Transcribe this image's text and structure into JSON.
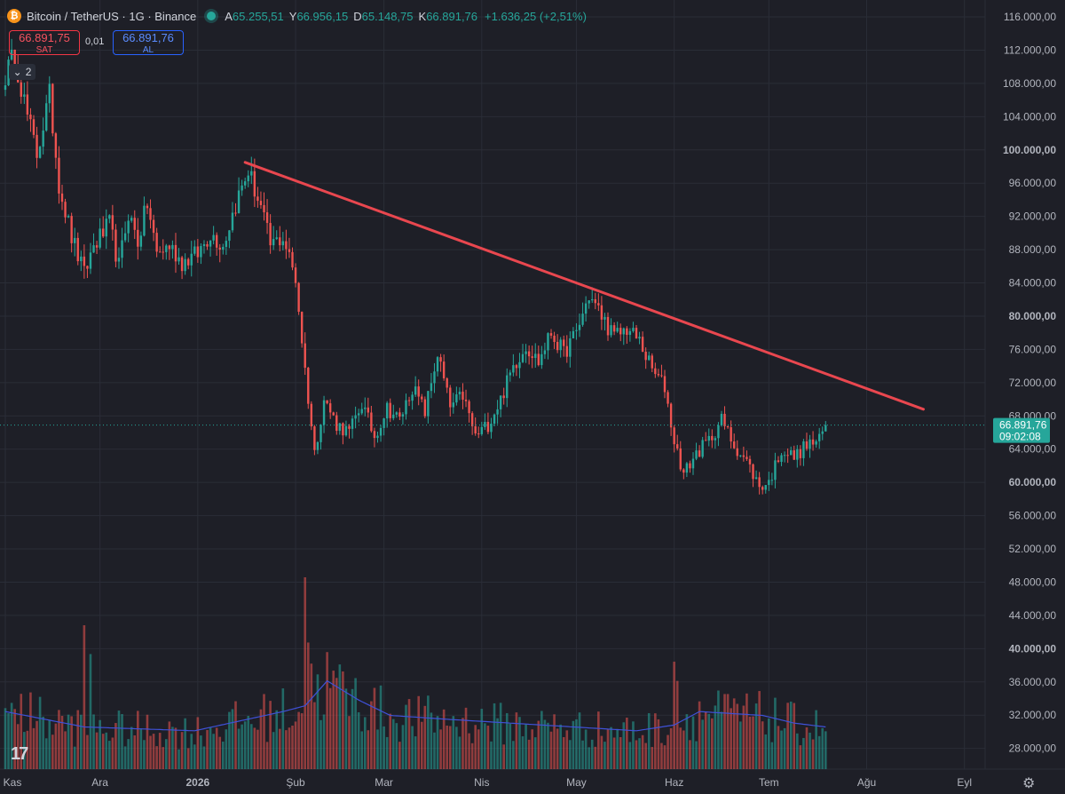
{
  "header": {
    "symbol_icon": "bitcoin-icon",
    "title": "Bitcoin / TetherUS · 1G · Binance",
    "open_label": "A",
    "open_value": "65.255,51",
    "high_label": "Y",
    "high_value": "66.956,15",
    "low_label": "D",
    "low_value": "65.148,75",
    "close_label": "K",
    "close_value": "66.891,76",
    "change": "+1.636,25 (+2,51%)"
  },
  "trade": {
    "sell_price": "66.891,75",
    "sell_label": "SAT",
    "spread": "0,01",
    "buy_price": "66.891,76",
    "buy_label": "AL",
    "indicator_count": "2"
  },
  "price_tag": {
    "price": "66.891,76",
    "countdown": "09:02:08"
  },
  "colors": {
    "bg": "#1e1f27",
    "up": "#26a69a",
    "down": "#ef5350",
    "trendline": "#e9474f",
    "volume_ma": "#3f51d8",
    "grid": "#2a2d37"
  },
  "chart_data": {
    "type": "candlestick",
    "title": "Bitcoin / TetherUS · 1G · Binance",
    "x_labels": [
      "Kas",
      "Ara",
      "2026",
      "Şub",
      "Mar",
      "Nis",
      "May",
      "Haz",
      "Tem",
      "Ağu",
      "Eyl"
    ],
    "x_label_day_index": [
      0,
      30,
      61,
      92,
      120,
      151,
      181,
      212,
      242,
      273,
      304
    ],
    "y_labels": [
      "116.000,00",
      "112.000,00",
      "108.000,00",
      "104.000,00",
      "100.000,00",
      "96.000,00",
      "92.000,00",
      "88.000,00",
      "84.000,00",
      "80.000,00",
      "76.000,00",
      "72.000,00",
      "68.000,00",
      "64.000,00",
      "60.000,00",
      "56.000,00",
      "52.000,00",
      "48.000,00",
      "44.000,00",
      "40.000,00",
      "36.000,00",
      "32.000,00",
      "28.000,00"
    ],
    "y_range": [
      26000,
      117000
    ],
    "last_price": 66891.76,
    "trendline": {
      "start": {
        "day": 76,
        "price": 98500
      },
      "end": {
        "day": 291,
        "price": 68800
      }
    },
    "anchors": [
      [
        0,
        109000
      ],
      [
        3,
        111500
      ],
      [
        7,
        104000
      ],
      [
        10,
        99500
      ],
      [
        14,
        106500
      ],
      [
        17,
        96000
      ],
      [
        21,
        89500
      ],
      [
        25,
        85000
      ],
      [
        28,
        88500
      ],
      [
        33,
        91000
      ],
      [
        36,
        86000
      ],
      [
        39,
        92500
      ],
      [
        42,
        89000
      ],
      [
        45,
        93500
      ],
      [
        48,
        87500
      ],
      [
        52,
        88500
      ],
      [
        56,
        86500
      ],
      [
        61,
        87500
      ],
      [
        65,
        90000
      ],
      [
        69,
        88500
      ],
      [
        73,
        93500
      ],
      [
        77,
        97500
      ],
      [
        81,
        93000
      ],
      [
        84,
        88500
      ],
      [
        88,
        89500
      ],
      [
        92,
        84500
      ],
      [
        95,
        73500
      ],
      [
        98,
        63500
      ],
      [
        101,
        70000
      ],
      [
        105,
        67000
      ],
      [
        109,
        66000
      ],
      [
        113,
        69500
      ],
      [
        117,
        65500
      ],
      [
        121,
        69000
      ],
      [
        125,
        67500
      ],
      [
        129,
        71500
      ],
      [
        133,
        68500
      ],
      [
        137,
        75500
      ],
      [
        141,
        69000
      ],
      [
        145,
        70500
      ],
      [
        149,
        65500
      ],
      [
        153,
        67000
      ],
      [
        157,
        70000
      ],
      [
        161,
        74000
      ],
      [
        165,
        76500
      ],
      [
        169,
        74500
      ],
      [
        173,
        78000
      ],
      [
        177,
        75500
      ],
      [
        181,
        78000
      ],
      [
        185,
        82500
      ],
      [
        189,
        80000
      ],
      [
        193,
        77500
      ],
      [
        197,
        78500
      ],
      [
        201,
        77000
      ],
      [
        205,
        73500
      ],
      [
        209,
        71500
      ],
      [
        212,
        65000
      ],
      [
        215,
        61000
      ],
      [
        219,
        63500
      ],
      [
        223,
        65000
      ],
      [
        227,
        67500
      ],
      [
        231,
        64500
      ],
      [
        235,
        62500
      ],
      [
        239,
        59500
      ],
      [
        242,
        60000
      ],
      [
        246,
        64000
      ],
      [
        250,
        63000
      ],
      [
        254,
        64500
      ],
      [
        258,
        65000
      ],
      [
        260,
        66891.76
      ]
    ],
    "volume_axis_max": 48000,
    "volume_ma_anchors": [
      [
        0,
        0.3
      ],
      [
        25,
        0.22
      ],
      [
        60,
        0.2
      ],
      [
        88,
        0.3
      ],
      [
        95,
        0.33
      ],
      [
        102,
        0.46
      ],
      [
        112,
        0.36
      ],
      [
        122,
        0.28
      ],
      [
        140,
        0.26
      ],
      [
        160,
        0.24
      ],
      [
        180,
        0.22
      ],
      [
        200,
        0.2
      ],
      [
        212,
        0.23
      ],
      [
        220,
        0.3
      ],
      [
        240,
        0.28
      ],
      [
        250,
        0.24
      ],
      [
        260,
        0.22
      ]
    ],
    "volume_spikes": [
      [
        25,
        0.75
      ],
      [
        27,
        0.6
      ],
      [
        95,
        1.0
      ],
      [
        96,
        0.66
      ],
      [
        97,
        0.55
      ],
      [
        212,
        0.56
      ],
      [
        213,
        0.46
      ],
      [
        8,
        0.4
      ]
    ]
  }
}
